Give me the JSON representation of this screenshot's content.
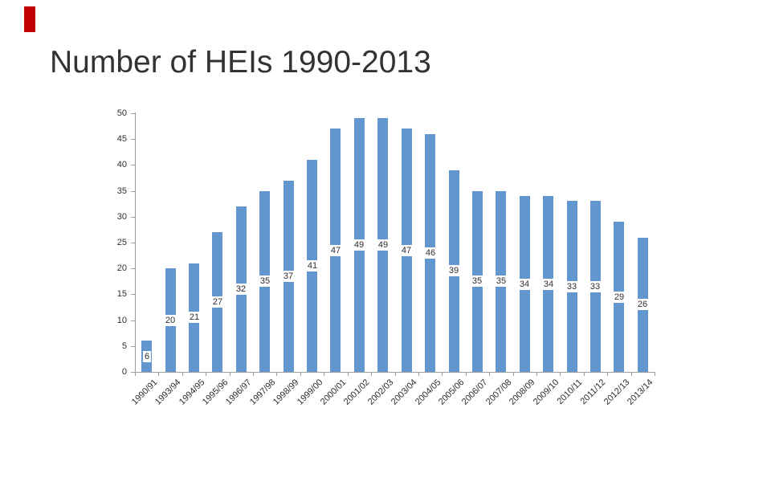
{
  "slide": {
    "title": "Number of HEIs 1990-2013",
    "accent_color": "#C00000"
  },
  "chart_data": {
    "type": "bar",
    "title": "Number of HEIs 1990-2013",
    "categories": [
      "1990/91",
      "1993/94",
      "1994/95",
      "1995/96",
      "1996/97",
      "1997/98",
      "1998/99",
      "1999/00",
      "2000/01",
      "2001/02",
      "2002/03",
      "2003/04",
      "2004/05",
      "2005/06",
      "2006/07",
      "2007/08",
      "2008/09",
      "2009/10",
      "2010/11",
      "2011/12",
      "2012/13",
      "2013/14"
    ],
    "values": [
      6,
      20,
      21,
      27,
      32,
      35,
      37,
      41,
      47,
      49,
      49,
      47,
      46,
      39,
      35,
      35,
      34,
      34,
      33,
      33,
      29,
      26
    ],
    "xlabel": "",
    "ylabel": "",
    "ylim": [
      0,
      50
    ],
    "yticks": [
      0,
      5,
      10,
      15,
      20,
      25,
      30,
      35,
      40,
      45,
      50
    ],
    "grid": false,
    "legend": false,
    "data_labels_position": "center",
    "bar_color": "#6197CE",
    "axis_color": "#9E9E9E",
    "text_color": "#2E2E2E"
  }
}
